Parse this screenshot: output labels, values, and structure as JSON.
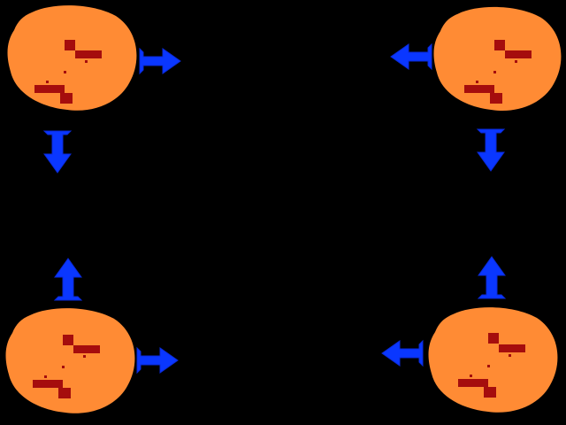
{
  "scene": {
    "background_color": "#000000",
    "creature_body_color": "#ff8b34",
    "creature_feature_color": "#a50d0d",
    "arrow_color": "#0a37ff",
    "creatures": [
      {
        "position": "top-left",
        "arrow_directions": [
          "right",
          "down"
        ]
      },
      {
        "position": "top-right",
        "arrow_directions": [
          "left",
          "down"
        ]
      },
      {
        "position": "bottom-left",
        "arrow_directions": [
          "up",
          "right"
        ]
      },
      {
        "position": "bottom-right",
        "arrow_directions": [
          "up",
          "left"
        ]
      }
    ]
  }
}
